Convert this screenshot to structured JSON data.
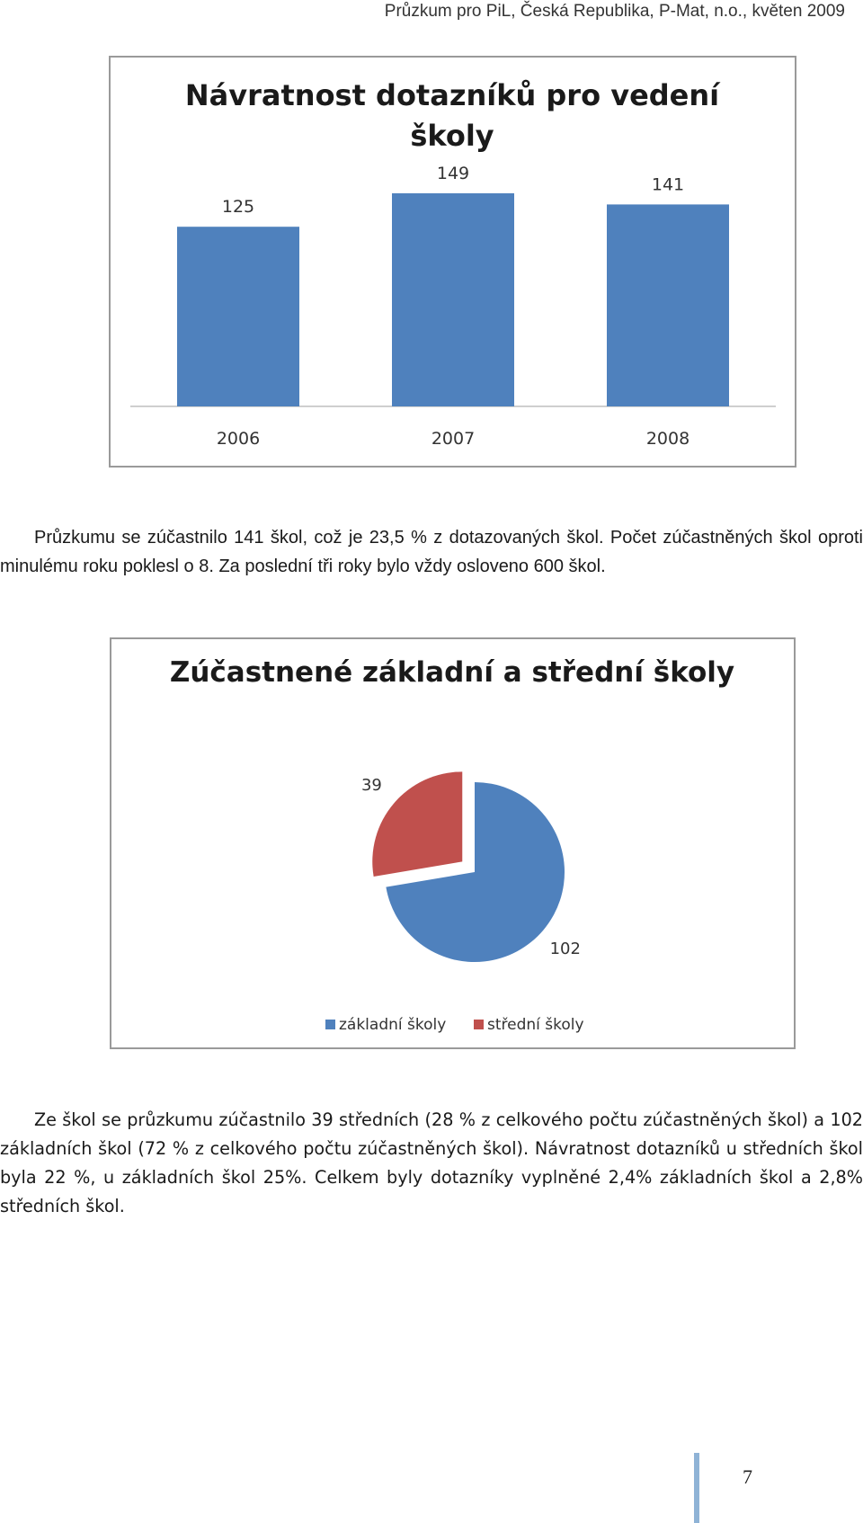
{
  "header": {
    "text": "Průzkum pro PiL, Česká Republika, P-Mat, n.o., květen 2009"
  },
  "chart_data": [
    {
      "type": "bar",
      "title_lines": [
        "Návratnost dotazníků pro vedení",
        "školy"
      ],
      "categories": [
        "2006",
        "2007",
        "2008"
      ],
      "values": [
        125,
        149,
        141
      ],
      "ylim": [
        0,
        160
      ],
      "grid": false,
      "color": "#4f81bd"
    },
    {
      "type": "pie",
      "title": "Zúčastnené základní a střední školy",
      "labels": [
        "základní školy",
        "střední školy"
      ],
      "values": [
        102,
        39
      ],
      "colors": [
        "#4f81bd",
        "#c0504d"
      ],
      "exploded": "střední školy",
      "legend": "bottom"
    }
  ],
  "paragraph1": "Průzkumu se zúčastnilo 141 škol, což je 23,5 % z dotazovaných škol. Počet zúčastněných škol oproti minulému roku poklesl o 8. Za poslední tři roky bylo vždy osloveno 600 škol.",
  "paragraph2": "Ze škol se průzkumu zúčastnilo 39 středních (28 % z celkového počtu zúčastněných škol) a 102 základních škol (72 % z celkového počtu zúčastněných škol). Návratnost dotazníků u středních škol byla 22 %, u základních škol 25%. Celkem byly dotazníky vyplněné 2,4% základních škol a 2,8% středních škol.",
  "page_number": "7"
}
